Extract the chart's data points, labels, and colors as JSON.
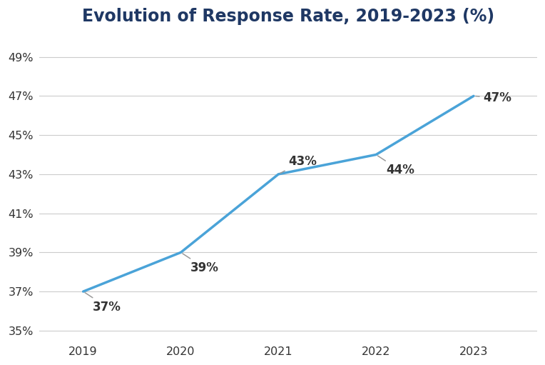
{
  "title": "Evolution of Response Rate, 2019-2023 (%)",
  "years": [
    2019,
    2020,
    2021,
    2022,
    2023
  ],
  "values": [
    37,
    39,
    43,
    44,
    47
  ],
  "labels": [
    "37%",
    "39%",
    "43%",
    "44%",
    "47%"
  ],
  "line_color": "#4AA3D8",
  "label_color": "#333333",
  "title_color": "#1F3864",
  "background_color": "#FFFFFF",
  "ylim": [
    34.5,
    50.2
  ],
  "yticks": [
    35,
    37,
    39,
    41,
    43,
    45,
    47,
    49
  ],
  "ytick_labels": [
    "35%",
    "37%",
    "39%",
    "41%",
    "43%",
    "45%",
    "47%",
    "49%"
  ],
  "grid_color": "#CCCCCC",
  "line_width": 2.5,
  "title_fontsize": 17,
  "tick_fontsize": 11.5,
  "label_fontsize": 12,
  "xlim": [
    2018.55,
    2023.65
  ]
}
